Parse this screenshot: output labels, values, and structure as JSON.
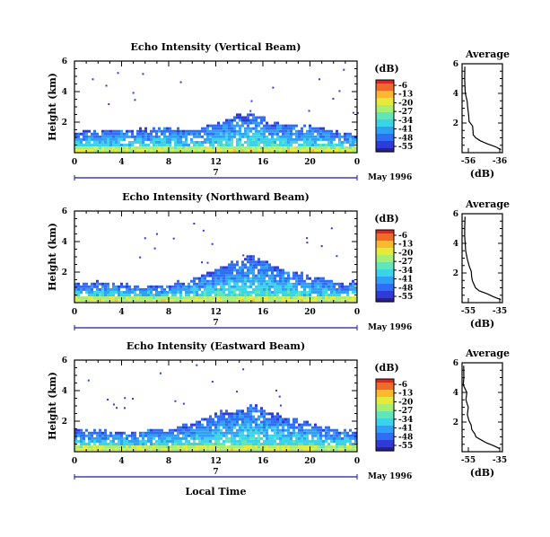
{
  "chart_data": [
    {
      "type": "heatmap",
      "title": "Echo Intensity (Vertical Beam)",
      "ylabel": "Height (km)",
      "xlabel": "",
      "x_ticks": [
        "0",
        "4",
        "8",
        "12",
        "16",
        "20",
        "0"
      ],
      "y_ticks": [
        "6",
        "4",
        "2"
      ],
      "ylim": [
        0,
        6
      ],
      "xlim": [
        0,
        24
      ],
      "date_day": "7",
      "date_label": "May 1996",
      "colorbar": {
        "unit": "(dB)",
        "ticks": [
          "-6",
          "-13",
          "-20",
          "-27",
          "-34",
          "-41",
          "-48",
          "-55"
        ]
      },
      "echo_top_km": [
        1.2,
        1.3,
        1.3,
        1.4,
        1.4,
        1.4,
        1.5,
        1.5,
        1.5,
        1.4,
        1.5,
        1.6,
        1.8,
        2.2,
        2.4,
        2.4,
        2.1,
        1.9,
        1.8,
        1.6,
        1.7,
        1.5,
        1.4,
        1.2
      ],
      "average": {
        "title": "Average",
        "xlabel": "(dB)",
        "x_ticks": [
          "-56",
          "-36"
        ],
        "y_ticks": [
          "6",
          "4",
          "2"
        ],
        "x": [
          -37,
          -40,
          -44,
          -47,
          -49,
          -50,
          -51,
          -51,
          -52,
          -53,
          -53,
          -54,
          -54,
          -54,
          -55,
          -55
        ],
        "y": [
          0.2,
          0.4,
          0.6,
          0.8,
          1.0,
          1.2,
          1.5,
          1.8,
          2.1,
          2.5,
          3.0,
          3.5,
          4.0,
          4.5,
          5.0,
          5.8
        ]
      }
    },
    {
      "type": "heatmap",
      "title": "Echo Intensity (Northward Beam)",
      "ylabel": "Height (km)",
      "xlabel": "",
      "x_ticks": [
        "0",
        "4",
        "8",
        "12",
        "16",
        "20",
        "0"
      ],
      "y_ticks": [
        "6",
        "4",
        "2"
      ],
      "ylim": [
        0,
        6
      ],
      "xlim": [
        0,
        24
      ],
      "date_day": "7",
      "date_label": "May 1996",
      "colorbar": {
        "unit": "(dB)",
        "ticks": [
          "-6",
          "-13",
          "-20",
          "-27",
          "-34",
          "-41",
          "-48",
          "-55"
        ]
      },
      "echo_top_km": [
        1.1,
        1.2,
        1.3,
        1.2,
        1.1,
        1.0,
        1.0,
        1.0,
        1.1,
        1.3,
        1.5,
        1.7,
        2.1,
        2.5,
        2.7,
        2.9,
        2.6,
        2.3,
        2.1,
        1.8,
        1.6,
        1.5,
        1.3,
        1.2
      ],
      "average": {
        "title": "Average",
        "xlabel": "(dB)",
        "x_ticks": [
          "-55",
          "-35"
        ],
        "y_ticks": [
          "6",
          "4",
          "2"
        ],
        "x": [
          -37,
          -40,
          -44,
          -47,
          -49,
          -50,
          -51,
          -51,
          -52,
          -53,
          -53,
          -54,
          -54,
          -55,
          -55,
          -55
        ],
        "y": [
          0.2,
          0.4,
          0.6,
          0.8,
          1.0,
          1.2,
          1.5,
          1.8,
          2.1,
          2.5,
          3.0,
          3.5,
          4.0,
          4.5,
          5.0,
          5.8
        ]
      }
    },
    {
      "type": "heatmap",
      "title": "Echo Intensity (Eastward Beam)",
      "ylabel": "Height (km)",
      "xlabel": "Local Time",
      "x_ticks": [
        "0",
        "4",
        "8",
        "12",
        "16",
        "20",
        "0"
      ],
      "y_ticks": [
        "6",
        "4",
        "2"
      ],
      "ylim": [
        0,
        6
      ],
      "xlim": [
        0,
        24
      ],
      "date_day": "7",
      "date_label": "May 1996",
      "colorbar": {
        "unit": "(dB)",
        "ticks": [
          "-6",
          "-13",
          "-20",
          "-27",
          "-34",
          "-41",
          "-48",
          "-55"
        ]
      },
      "echo_top_km": [
        1.2,
        1.3,
        1.4,
        1.3,
        1.2,
        1.2,
        1.3,
        1.4,
        1.4,
        1.6,
        1.8,
        2.1,
        2.4,
        2.6,
        2.8,
        3.0,
        2.7,
        2.4,
        2.2,
        1.9,
        1.8,
        1.6,
        1.5,
        1.3
      ],
      "average": {
        "title": "Average",
        "xlabel": "(dB)",
        "x_ticks": [
          "-55",
          "-35"
        ],
        "y_ticks": [
          "6",
          "4",
          "2"
        ],
        "x": [
          -37,
          -40,
          -44,
          -47,
          -49,
          -50,
          -51,
          -51,
          -52,
          -53,
          -53,
          -54,
          -54,
          -55,
          -55,
          -55
        ],
        "y": [
          0.2,
          0.4,
          0.6,
          0.8,
          1.0,
          1.2,
          1.5,
          1.8,
          2.1,
          2.5,
          3.0,
          3.5,
          4.0,
          4.5,
          5.0,
          5.8
        ]
      }
    }
  ],
  "colors": {
    "colormap": [
      "#2a1f8c",
      "#2e3bd6",
      "#2f6df5",
      "#2fa0f5",
      "#3ad3e8",
      "#60e6b8",
      "#a6ee74",
      "#e6ea3c",
      "#fbb830",
      "#f06a2a",
      "#d8262a"
    ],
    "axis": "#000000",
    "date_axis": "#1a1a9a"
  }
}
